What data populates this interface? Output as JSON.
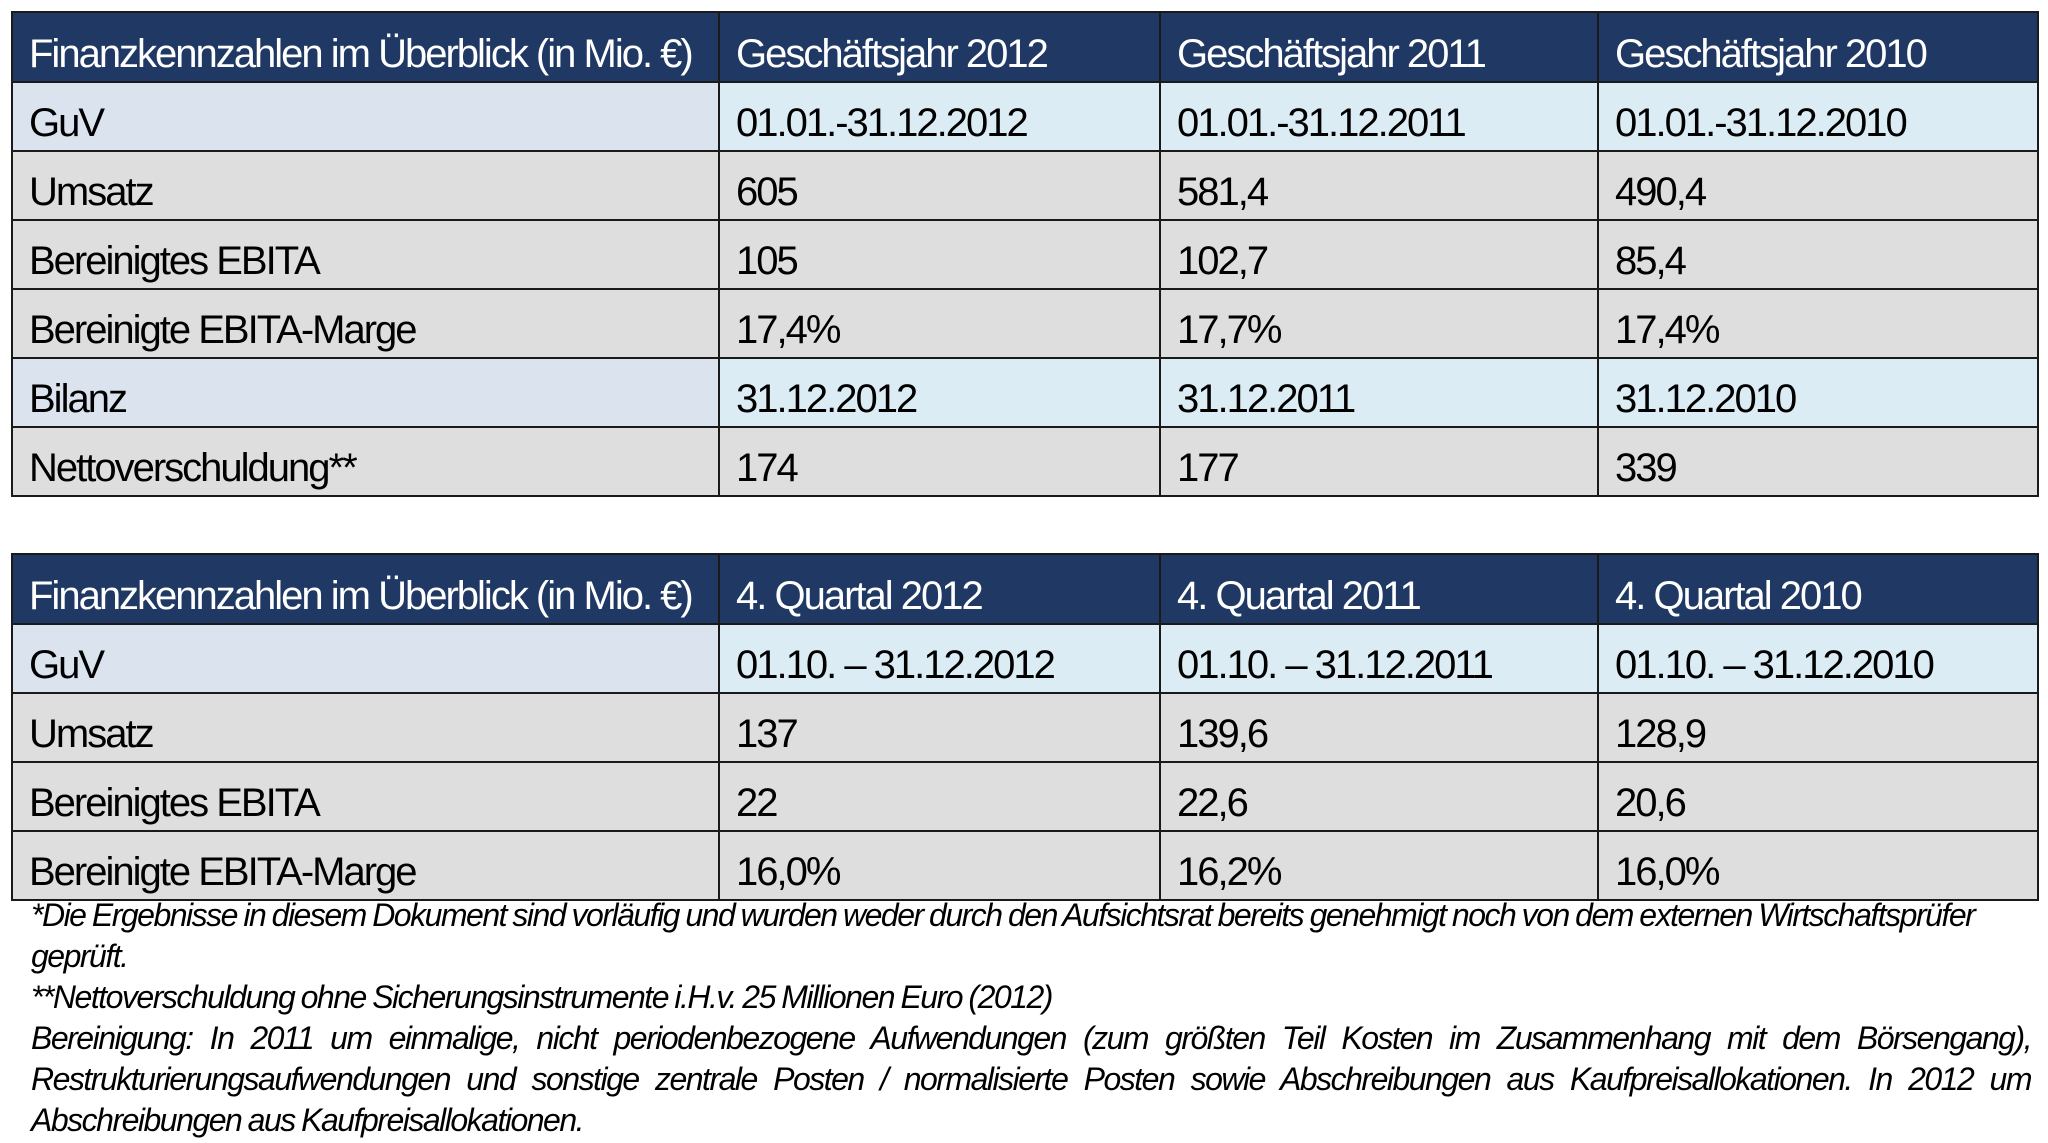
{
  "annual": {
    "header": [
      "Finanzkennzahlen im Überblick (in Mio. €)",
      "Geschäftsjahr 2012",
      "Geschäftsjahr 2011",
      "Geschäftsjahr 2010"
    ],
    "rows": [
      [
        "GuV",
        "01.01.-31.12.2012",
        "01.01.-31.12.2011",
        "01.01.-31.12.2010"
      ],
      [
        "Umsatz",
        "605",
        "581,4",
        "490,4"
      ],
      [
        "Bereinigtes EBITA",
        "105",
        "102,7",
        "85,4"
      ],
      [
        "Bereinigte EBITA-Marge",
        "17,4%",
        "17,7%",
        "17,4%"
      ],
      [
        "Bilanz",
        "31.12.2012",
        "31.12.2011",
        "31.12.2010"
      ],
      [
        "Nettoverschuldung**",
        "174",
        "177",
        "339"
      ]
    ]
  },
  "quarterly": {
    "header": [
      "Finanzkennzahlen im Überblick (in Mio. €)",
      "4. Quartal 2012",
      "4. Quartal 2011",
      "4. Quartal 2010"
    ],
    "rows": [
      [
        "GuV",
        "01.10. – 31.12.2012",
        "01.10. – 31.12.2011",
        "01.10. – 31.12.2010"
      ],
      [
        "Umsatz",
        "137",
        "139,6",
        "128,9"
      ],
      [
        "Bereinigtes EBITA",
        "22",
        "22,6",
        "20,6"
      ],
      [
        "Bereinigte EBITA-Marge",
        "16,0%",
        "16,2%",
        "16,0%"
      ]
    ]
  },
  "footnotes": {
    "preliminary": "*Die Ergebnisse in diesem Dokument sind vorläufig und wurden weder durch den Aufsichtsrat bereits genehmigt noch von dem externen Wirtschaftsprüfer geprüft.",
    "net_debt": "**Nettoverschuldung ohne Sicherungsinstrumente i.H.v. 25 Millionen Euro (2012)",
    "adjustment": "Bereinigung: In 2011 um einmalige, nicht periodenbezogene Aufwendungen (zum größten Teil Kosten im Zusammenhang mit dem Börsengang), Restrukturierungsaufwendungen und sonstige zentrale Posten / normalisierte Posten sowie Abschreibungen aus Kaufpreisallokationen. In 2012 um Abschreibungen aus Kaufpreisallokationen."
  }
}
